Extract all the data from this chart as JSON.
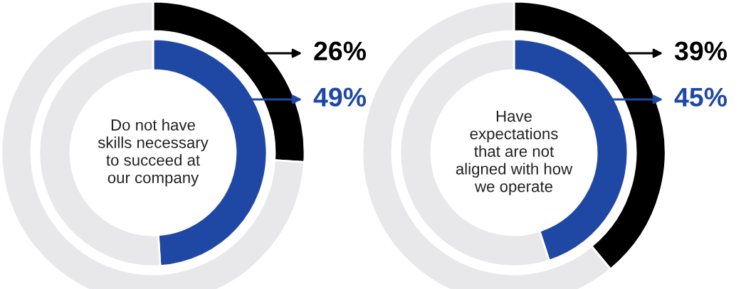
{
  "chart_data": [
    {
      "type": "donut",
      "categories": [
        null,
        null
      ],
      "series": [
        {
          "values": [
            26,
            74
          ],
          "colors": [
            "#000000",
            "#e8e8ea"
          ],
          "value_labels": [
            "26%",
            null
          ]
        },
        {
          "values": [
            49,
            51
          ],
          "colors": [
            "#1f48a5",
            "#e8e8ea"
          ],
          "value_labels": [
            "49%",
            null
          ]
        }
      ],
      "annotations": [
        "Do not have\nskills necessary\nto succeed at\nour company"
      ]
    },
    {
      "type": "donut",
      "categories": [
        null,
        null
      ],
      "series": [
        {
          "values": [
            39,
            61
          ],
          "colors": [
            "#000000",
            "#e8e8ea"
          ],
          "value_labels": [
            "39%",
            null
          ]
        },
        {
          "values": [
            45,
            55
          ],
          "colors": [
            "#1f48a5",
            "#e8e8ea"
          ],
          "value_labels": [
            "45%",
            null
          ]
        }
      ],
      "annotations": [
        "Have\nexpectations\nthat are not\naligned with how\nwe operate"
      ]
    }
  ]
}
